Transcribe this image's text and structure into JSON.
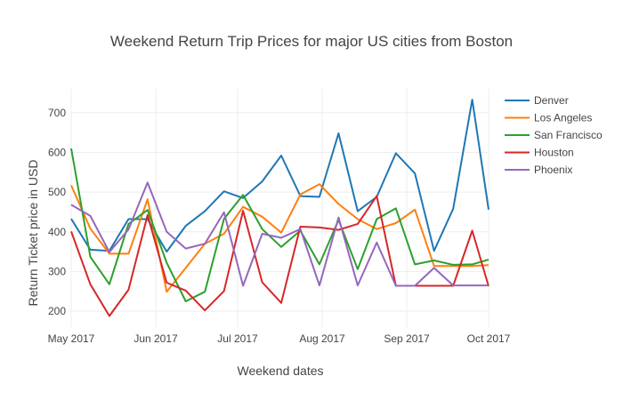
{
  "chart_data": {
    "type": "line",
    "title": "Weekend Return Trip Prices for major US cities from Boston",
    "xlabel": "Weekend dates",
    "ylabel": "Return Ticket price in USD",
    "xlim": [
      "2017-05-01",
      "2017-10-01"
    ],
    "ylim": [
      160,
      760
    ],
    "x_ticks": [
      {
        "date": "2017-05-01",
        "label": "May 2017"
      },
      {
        "date": "2017-06-01",
        "label": "Jun 2017"
      },
      {
        "date": "2017-07-01",
        "label": "Jul 2017"
      },
      {
        "date": "2017-08-01",
        "label": "Aug 2017"
      },
      {
        "date": "2017-09-01",
        "label": "Sep 2017"
      },
      {
        "date": "2017-10-01",
        "label": "Oct 2017"
      }
    ],
    "y_ticks": [
      200,
      300,
      400,
      500,
      600,
      700
    ],
    "grid": true,
    "legend_position": "top-right",
    "x": [
      "2017-05-01",
      "2017-05-08",
      "2017-05-15",
      "2017-05-22",
      "2017-05-29",
      "2017-06-05",
      "2017-06-12",
      "2017-06-19",
      "2017-06-26",
      "2017-07-03",
      "2017-07-10",
      "2017-07-17",
      "2017-07-24",
      "2017-07-31",
      "2017-08-07",
      "2017-08-14",
      "2017-08-21",
      "2017-08-28",
      "2017-09-04",
      "2017-09-11",
      "2017-09-18",
      "2017-09-25",
      "2017-10-01"
    ],
    "series": [
      {
        "name": "Denver",
        "color": "#1f77b4",
        "values": [
          433,
          355,
          352,
          432,
          432,
          350,
          415,
          452,
          502,
          485,
          527,
          592,
          490,
          488,
          648,
          452,
          488,
          598,
          547,
          352,
          458,
          733,
          456
        ]
      },
      {
        "name": "Los Angeles",
        "color": "#ff7f0e",
        "values": [
          517,
          408,
          345,
          345,
          482,
          249,
          309,
          370,
          395,
          463,
          438,
          398,
          494,
          520,
          470,
          432,
          407,
          422,
          456,
          314,
          314,
          314,
          316
        ]
      },
      {
        "name": "San Francisco",
        "color": "#2ca02c",
        "values": [
          610,
          337,
          268,
          420,
          455,
          322,
          225,
          249,
          433,
          493,
          407,
          362,
          403,
          318,
          430,
          306,
          432,
          459,
          318,
          328,
          317,
          318,
          330
        ]
      },
      {
        "name": "Houston",
        "color": "#d62728",
        "values": [
          401,
          268,
          188,
          254,
          442,
          272,
          252,
          202,
          251,
          453,
          273,
          221,
          413,
          411,
          405,
          420,
          490,
          264,
          264,
          264,
          264,
          403,
          263
        ]
      },
      {
        "name": "Phoenix",
        "color": "#9467bd",
        "values": [
          468,
          440,
          349,
          406,
          524,
          400,
          358,
          370,
          449,
          264,
          395,
          385,
          407,
          265,
          436,
          265,
          373,
          264,
          264,
          309,
          265,
          265,
          265
        ]
      }
    ]
  }
}
